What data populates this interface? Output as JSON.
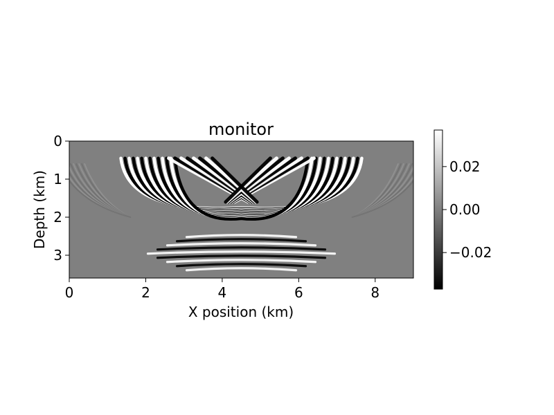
{
  "chart_data": {
    "type": "heatmap",
    "title": "monitor",
    "xlabel": "X position (km)",
    "ylabel": "Depth (km)",
    "xlim": [
      0,
      9
    ],
    "ylim": [
      0,
      3.6
    ],
    "y_inverted": true,
    "x_ticks": [
      0,
      2,
      4,
      6,
      8
    ],
    "x_tick_labels": [
      "0",
      "2",
      "4",
      "6",
      "8"
    ],
    "y_ticks": [
      0,
      1,
      2,
      3
    ],
    "y_tick_labels": [
      "0",
      "1",
      "2",
      "3"
    ],
    "colormap": "gray",
    "colors": {
      "min": "#000000",
      "mid": "#808080",
      "max": "#ffffff"
    },
    "colorbar": {
      "range": [
        -0.037,
        0.037
      ],
      "ticks": [
        0.02,
        0.0,
        -0.02
      ],
      "tick_labels": [
        "0.02",
        "0.00",
        "−0.02"
      ]
    },
    "grid": false
  }
}
